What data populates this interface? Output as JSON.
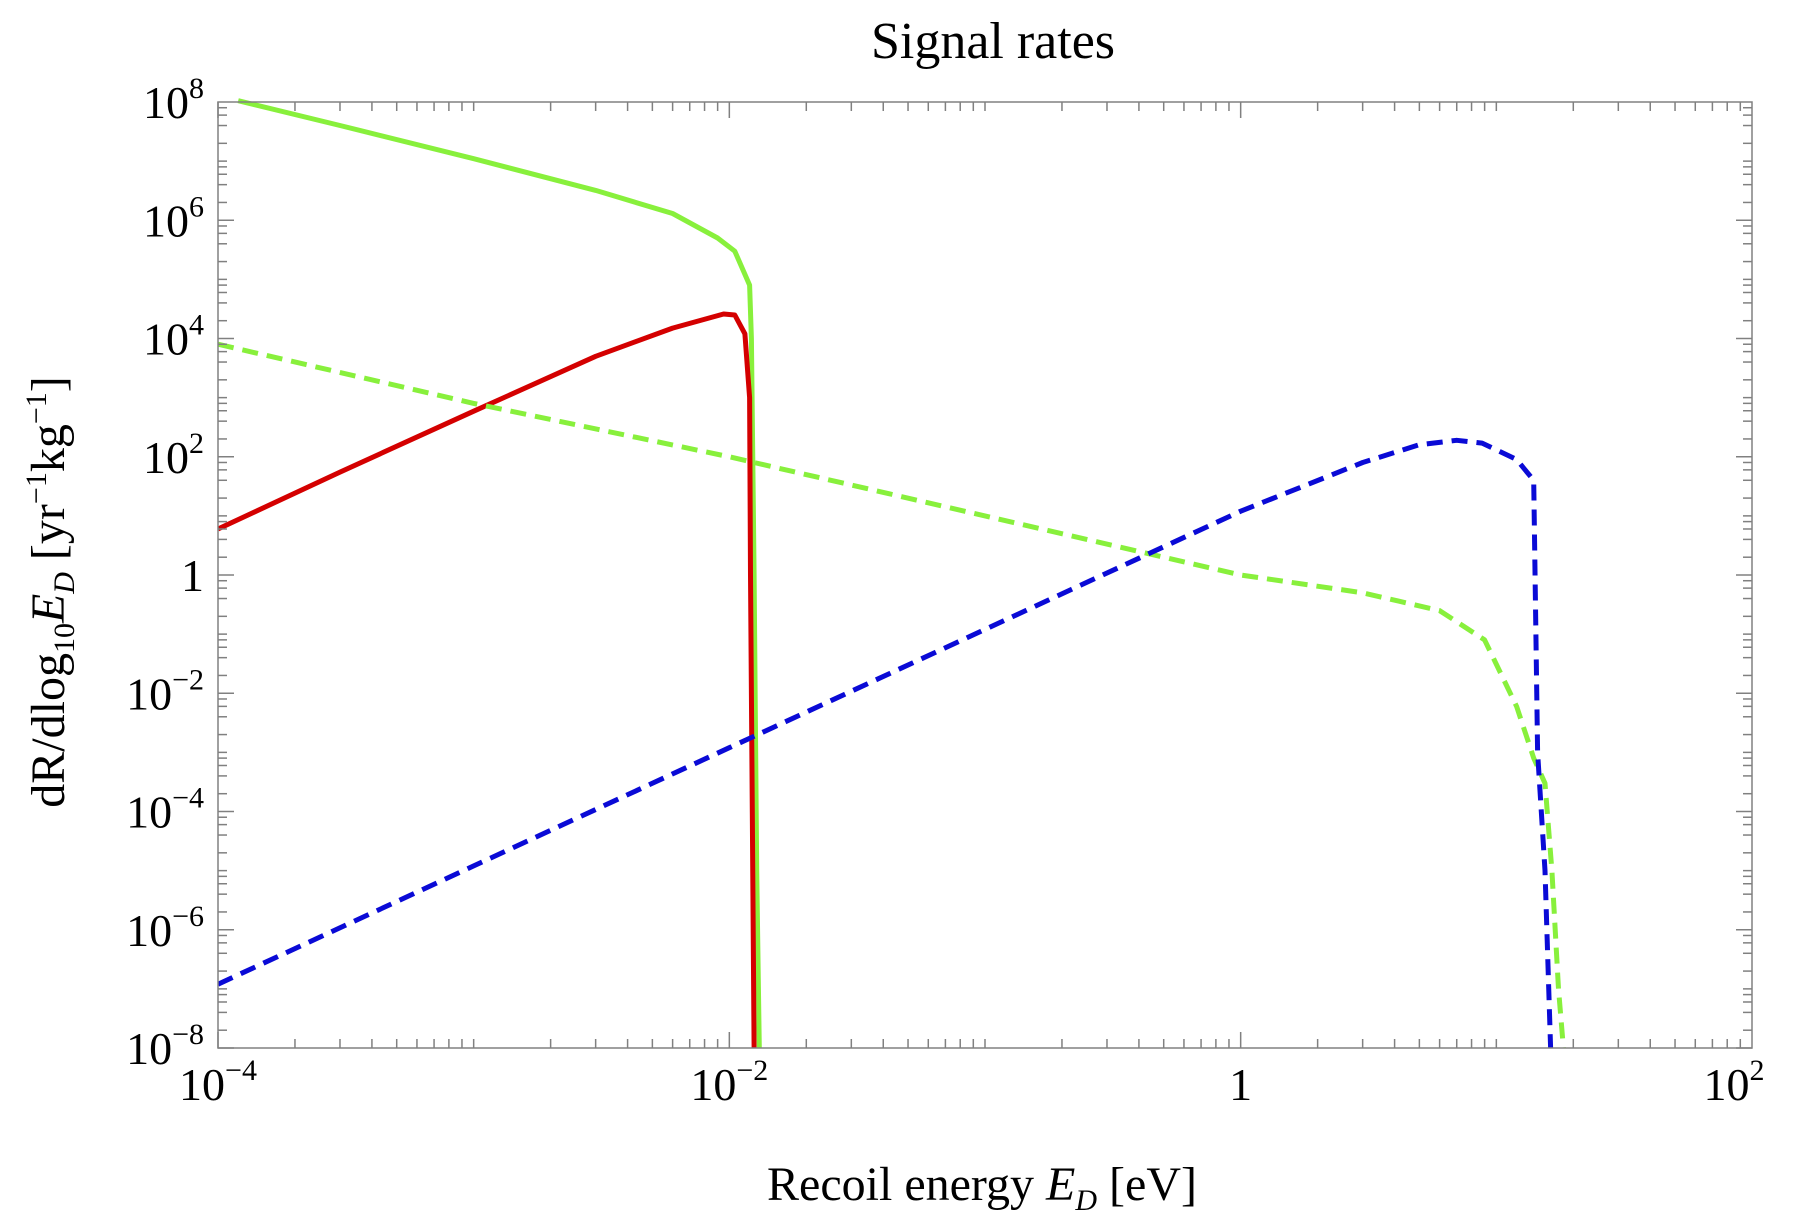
{
  "chart_data": {
    "type": "line",
    "title": "Signal rates",
    "xscale": "log",
    "yscale": "log",
    "xlim": [
      0.0001,
      100
    ],
    "ylim": [
      1e-08,
      100000000.0
    ],
    "xlabel": {
      "prefix": "Recoil energy ",
      "var": "E",
      "sub": "D",
      "unit": " [eV]"
    },
    "ylabel": {
      "prefix": "dR/dlog",
      "log_sub": "10",
      "var": "E",
      "var_sub": "D",
      "unit_open": " [yr",
      "exp1": "−1",
      "mid": "kg",
      "exp2": "−1",
      "unit_close": "]"
    },
    "x_ticks": [
      {
        "value": 0.0001,
        "base": "10",
        "exp": "−4"
      },
      {
        "value": 0.01,
        "base": "10",
        "exp": "−2"
      },
      {
        "value": 1,
        "base": "1",
        "exp": ""
      },
      {
        "value": 100,
        "base": "10",
        "exp": "2"
      }
    ],
    "y_ticks": [
      {
        "value": 100000000.0,
        "base": "10",
        "exp": "8"
      },
      {
        "value": 1000000.0,
        "base": "10",
        "exp": "6"
      },
      {
        "value": 10000.0,
        "base": "10",
        "exp": "4"
      },
      {
        "value": 100,
        "base": "10",
        "exp": "2"
      },
      {
        "value": 1,
        "base": "1",
        "exp": ""
      },
      {
        "value": 0.01,
        "base": "10",
        "exp": "−2"
      },
      {
        "value": 0.0001,
        "base": "10",
        "exp": "−4"
      },
      {
        "value": 1e-06,
        "base": "10",
        "exp": "−6"
      },
      {
        "value": 1e-08,
        "base": "10",
        "exp": "−8"
      }
    ],
    "series": [
      {
        "name": "green-solid",
        "color": "#88f03c",
        "dash": "solid",
        "x": [
          0.00012,
          0.0003,
          0.001,
          0.003,
          0.006,
          0.009,
          0.0105,
          0.012,
          0.0122,
          0.0125,
          0.0128,
          0.0131
        ],
        "y": [
          105000000.0,
          40000000.0,
          11000000.0,
          3200000.0,
          1300000.0,
          500000.0,
          300000.0,
          80000.0,
          10000.0,
          1.0,
          1e-05,
          1e-08
        ]
      },
      {
        "name": "red-solid",
        "color": "#d40000",
        "dash": "solid",
        "x": [
          0.0001,
          0.0003,
          0.001,
          0.003,
          0.006,
          0.0095,
          0.0105,
          0.0115,
          0.012,
          0.0121,
          0.0123,
          0.0125
        ],
        "y": [
          6,
          55,
          590,
          5000,
          15000.0,
          26000.0,
          25000.0,
          12000.0,
          1000.0,
          1.0,
          0.0001,
          1e-08
        ]
      },
      {
        "name": "green-dashed",
        "color": "#88f03c",
        "dash": "dashed",
        "x": [
          0.0001,
          0.001,
          0.01,
          0.1,
          1,
          3,
          6,
          9,
          12,
          14,
          15.5,
          16.5,
          17.5,
          18.3
        ],
        "y": [
          8000,
          800,
          100,
          10,
          1,
          0.5,
          0.25,
          0.08,
          0.006,
          0.0008,
          0.0003,
          1e-05,
          1e-07,
          1e-08
        ]
      },
      {
        "name": "blue-dashed",
        "color": "#0a0ad6",
        "dash": "dashed",
        "x": [
          0.0001,
          0.001,
          0.01,
          0.1,
          1,
          3,
          5,
          7,
          8.8,
          12,
          14,
          14.5,
          15.5,
          16.3
        ],
        "y": [
          1.2e-07,
          1.2e-05,
          0.0012,
          0.12,
          12,
          80,
          160,
          190,
          170,
          90,
          40,
          0.001,
          1e-05,
          1e-08
        ]
      }
    ]
  }
}
